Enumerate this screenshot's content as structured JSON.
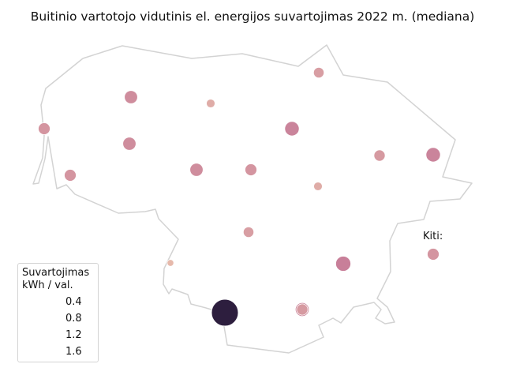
{
  "title": "Buitinio vartotojo vidutinis el. energijos suvartojimas 2022 m. (mediana)",
  "other_label": "Kiti:",
  "legend": {
    "title_line1": "Suvartojimas",
    "title_line2": "kWh / val.",
    "items": [
      {
        "label": "0.4",
        "value": 0.4
      },
      {
        "label": "0.8",
        "value": 0.8
      },
      {
        "label": "1.2",
        "value": 1.2
      },
      {
        "label": "1.6",
        "value": 1.6
      }
    ]
  },
  "colors": {
    "border": "#d3d3d3",
    "low": "#e6b9ab",
    "mid": "#c67b98",
    "high": "#2d1e3e"
  },
  "chart_data": {
    "type": "scatter",
    "size_encodes": "Suvartojimas, kWh / val.",
    "color_encodes": "Suvartojimas, kWh / val.",
    "legend_placement": "lower-left",
    "points": [
      {
        "value": 0.55
      },
      {
        "value": 0.65
      },
      {
        "value": 0.3
      },
      {
        "value": 0.45
      },
      {
        "value": 0.75
      },
      {
        "value": 0.65
      },
      {
        "value": 0.75
      },
      {
        "value": 0.55
      },
      {
        "value": 0.65
      },
      {
        "value": 0.55
      },
      {
        "value": 0.3
      },
      {
        "value": 0.5
      },
      {
        "value": 0.8
      },
      {
        "value": 0.45
      },
      {
        "value": 0.7
      },
      {
        "value": 0.15
      },
      {
        "value": 1.7
      },
      {
        "value": 0.5
      },
      {
        "value": 0.55,
        "group": "Kiti"
      }
    ]
  }
}
